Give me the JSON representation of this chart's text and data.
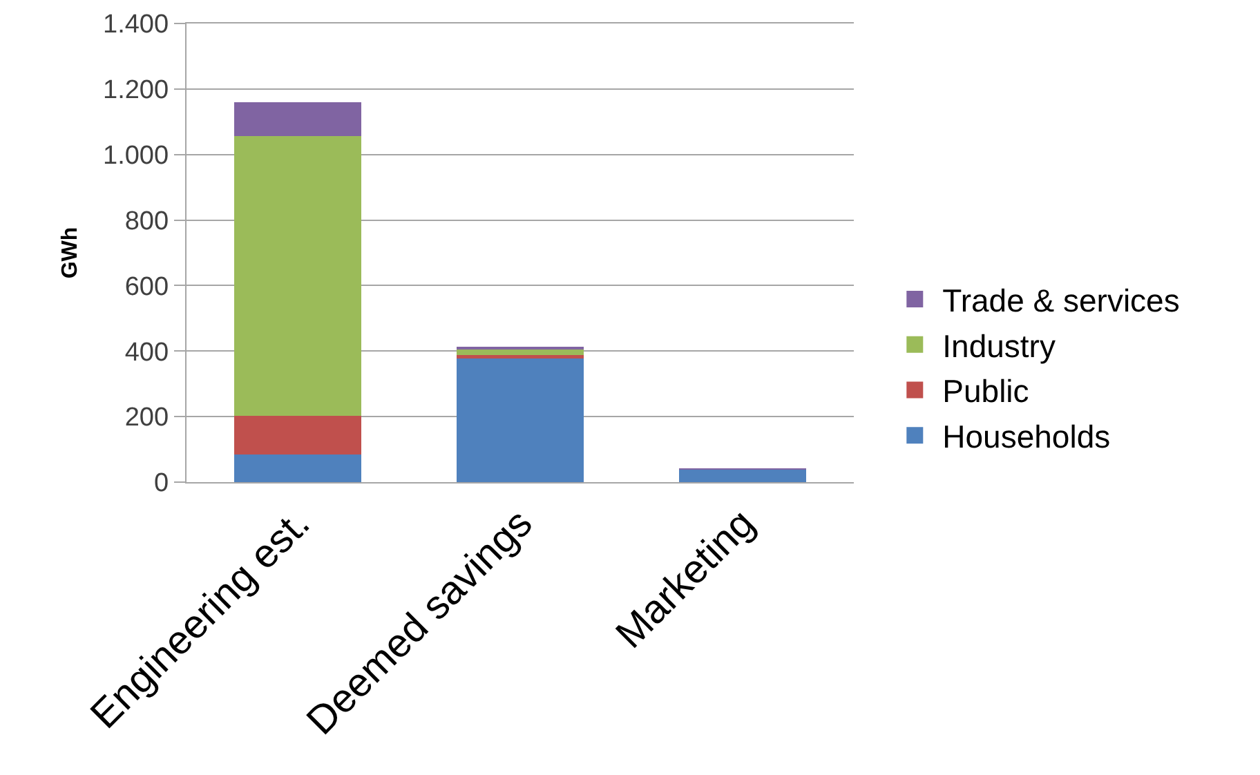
{
  "chart_data": {
    "type": "bar",
    "stacked": true,
    "categories": [
      "Engineering est.",
      "Deemed savings",
      "Marketing"
    ],
    "ylabel": "GWh",
    "ylim": [
      0,
      1400
    ],
    "yticks": [
      0,
      200,
      400,
      600,
      800,
      {
        "value": 1000,
        "label": "1.000"
      },
      {
        "value": 1200,
        "label": "1.200"
      },
      {
        "value": 1400,
        "label": "1.400"
      }
    ],
    "grid": "y",
    "legend": "right",
    "series": [
      {
        "name": "Households",
        "color": "#4f81bd",
        "values": [
          85,
          378,
          38
        ]
      },
      {
        "name": "Public",
        "color": "#c0504d",
        "values": [
          117,
          9,
          0
        ]
      },
      {
        "name": "Industry",
        "color": "#9bbb59",
        "values": [
          855,
          19,
          0
        ]
      },
      {
        "name": "Trade & services",
        "color": "#8064a2",
        "values": [
          103,
          7,
          4
        ]
      }
    ]
  }
}
